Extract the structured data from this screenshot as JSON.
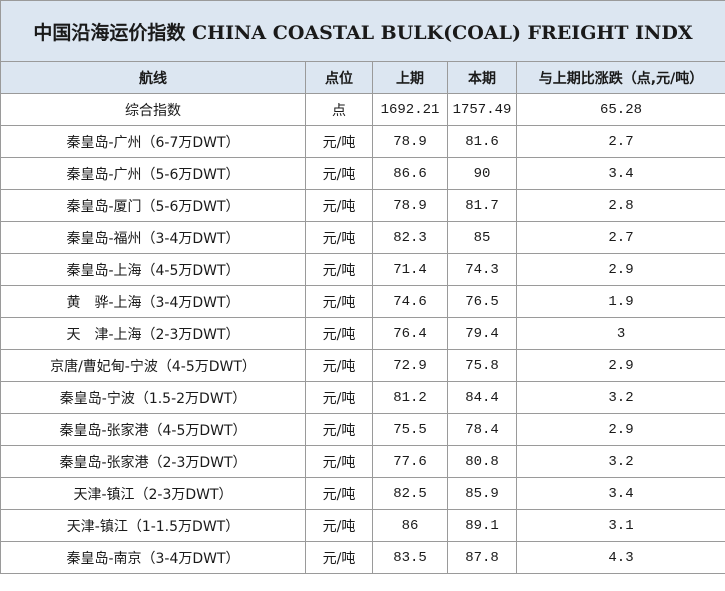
{
  "title": "中国沿海运价指数 CHINA COASTAL BULK(COAL) FREIGHT INDX",
  "table": {
    "header": [
      "航线",
      "点位",
      "上期",
      "本期",
      "与上期比涨跌（点,元/吨）"
    ],
    "rows": [
      [
        "综合指数",
        "点",
        "1692.21",
        "1757.49",
        "65.28"
      ],
      [
        "秦皇岛-广州（6-7万DWT）",
        "元/吨",
        "78.9",
        "81.6",
        "2.7"
      ],
      [
        "秦皇岛-广州（5-6万DWT）",
        "元/吨",
        "86.6",
        "90",
        "3.4"
      ],
      [
        "秦皇岛-厦门（5-6万DWT）",
        "元/吨",
        "78.9",
        "81.7",
        "2.8"
      ],
      [
        "秦皇岛-福州（3-4万DWT）",
        "元/吨",
        "82.3",
        "85",
        "2.7"
      ],
      [
        "秦皇岛-上海（4-5万DWT）",
        "元/吨",
        "71.4",
        "74.3",
        "2.9"
      ],
      [
        "黄　骅-上海（3-4万DWT）",
        "元/吨",
        "74.6",
        "76.5",
        "1.9"
      ],
      [
        "天　津-上海（2-3万DWT）",
        "元/吨",
        "76.4",
        "79.4",
        "3"
      ],
      [
        "京唐/曹妃甸-宁波（4-5万DWT）",
        "元/吨",
        "72.9",
        "75.8",
        "2.9"
      ],
      [
        "秦皇岛-宁波（1.5-2万DWT）",
        "元/吨",
        "81.2",
        "84.4",
        "3.2"
      ],
      [
        "秦皇岛-张家港（4-5万DWT）",
        "元/吨",
        "75.5",
        "78.4",
        "2.9"
      ],
      [
        "秦皇岛-张家港（2-3万DWT）",
        "元/吨",
        "77.6",
        "80.8",
        "3.2"
      ],
      [
        "天津-镇江（2-3万DWT）",
        "元/吨",
        "82.5",
        "85.9",
        "3.4"
      ],
      [
        "天津-镇江（1-1.5万DWT）",
        "元/吨",
        "86",
        "89.1",
        "3.1"
      ],
      [
        "秦皇岛-南京（3-4万DWT）",
        "元/吨",
        "83.5",
        "87.8",
        "4.3"
      ]
    ]
  }
}
